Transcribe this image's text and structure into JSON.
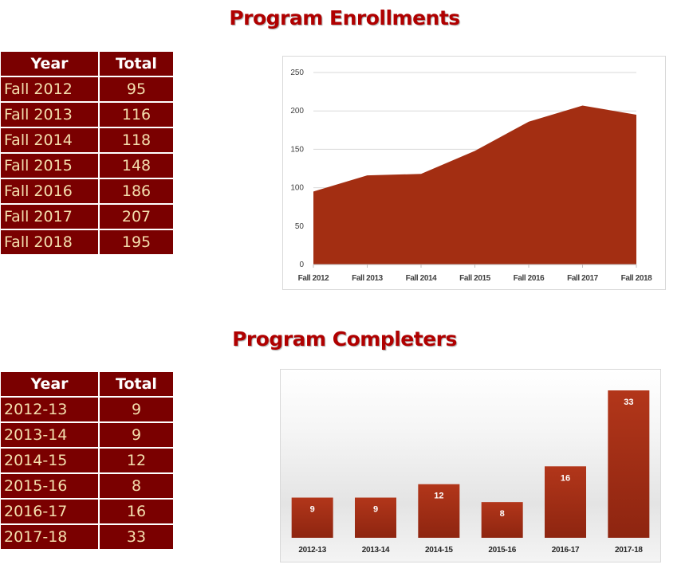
{
  "enrollments": {
    "title": "Program Enrollments",
    "table": {
      "headers": [
        "Year",
        "Total"
      ],
      "rows": [
        [
          "Fall 2012",
          "95"
        ],
        [
          "Fall 2013",
          "116"
        ],
        [
          "Fall 2014",
          "118"
        ],
        [
          "Fall 2015",
          "148"
        ],
        [
          "Fall 2016",
          "186"
        ],
        [
          "Fall 2017",
          "207"
        ],
        [
          "Fall 2018",
          "195"
        ]
      ]
    }
  },
  "completers": {
    "title": "Program Completers",
    "table": {
      "headers": [
        "Year",
        "Total"
      ],
      "rows": [
        [
          "2012-13",
          "9"
        ],
        [
          "2013-14",
          "9"
        ],
        [
          "2014-15",
          "12"
        ],
        [
          "2015-16",
          "8"
        ],
        [
          "2016-17",
          "16"
        ],
        [
          "2017-18",
          "33"
        ]
      ]
    }
  },
  "chart_data": [
    {
      "type": "area",
      "categories": [
        "Fall 2012",
        "Fall 2013",
        "Fall 2014",
        "Fall 2015",
        "Fall 2016",
        "Fall 2017",
        "Fall 2018"
      ],
      "values": [
        95,
        116,
        118,
        148,
        186,
        207,
        195
      ],
      "ylim": [
        0,
        250
      ],
      "yticks": [
        0,
        50,
        100,
        150,
        200,
        250
      ],
      "grid": true,
      "color": "#a32e12"
    },
    {
      "type": "bar",
      "categories": [
        "2012-13",
        "2013-14",
        "2014-15",
        "2015-16",
        "2016-17",
        "2017-18"
      ],
      "values": [
        9,
        9,
        12,
        8,
        16,
        33
      ],
      "data_labels": [
        "9",
        "9",
        "12",
        "8",
        "16",
        "33"
      ],
      "grid": false,
      "color": "#a32e12"
    }
  ]
}
